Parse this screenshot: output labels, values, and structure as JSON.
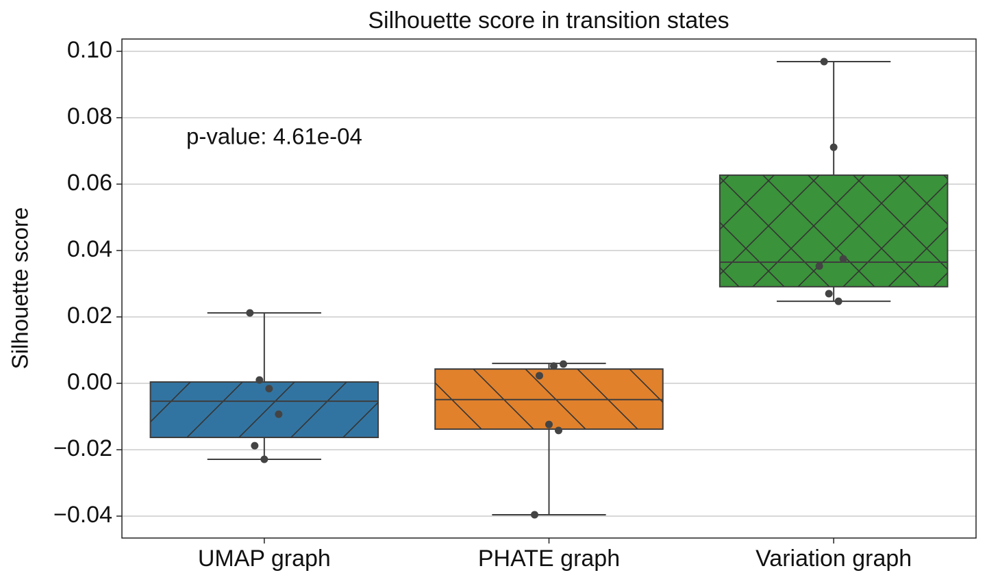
{
  "chart_data": {
    "type": "box",
    "title": "Silhouette score in transition states",
    "ylabel": "Silhouette score",
    "annotation": "p-value: 4.61e-04",
    "ylim": [
      -0.0466,
      0.1037
    ],
    "yticks": [
      {
        "value": -0.04,
        "label": "−0.04"
      },
      {
        "value": -0.02,
        "label": "−0.02"
      },
      {
        "value": 0.0,
        "label": "0.00"
      },
      {
        "value": 0.02,
        "label": "0.02"
      },
      {
        "value": 0.04,
        "label": "0.04"
      },
      {
        "value": 0.06,
        "label": "0.06"
      },
      {
        "value": 0.08,
        "label": "0.08"
      },
      {
        "value": 0.1,
        "label": "0.10"
      }
    ],
    "grid": true,
    "boxes": [
      {
        "name": "UMAP graph",
        "color": "#3274a1",
        "hatch": "/",
        "whislo": -0.0229,
        "q1": -0.0163,
        "median": -0.0054,
        "q3": 0.0004,
        "whishi": 0.0212,
        "points": [
          0.0212,
          0.001,
          -0.0016,
          -0.0093,
          -0.0188,
          -0.0229
        ]
      },
      {
        "name": "PHATE graph",
        "color": "#e1812c",
        "hatch": "\\",
        "whislo": -0.0396,
        "q1": -0.0138,
        "median": -0.0049,
        "q3": 0.0043,
        "whishi": 0.006,
        "points": [
          0.0052,
          0.0058,
          0.0023,
          -0.0124,
          -0.0142,
          -0.0396
        ]
      },
      {
        "name": "Variation graph",
        "color": "#3a923a",
        "hatch": "x",
        "whislo": 0.0247,
        "q1": 0.0291,
        "median": 0.0365,
        "q3": 0.0627,
        "whishi": 0.0969,
        "points": [
          0.0969,
          0.0711,
          0.0375,
          0.0353,
          0.027,
          0.0247
        ]
      }
    ]
  }
}
